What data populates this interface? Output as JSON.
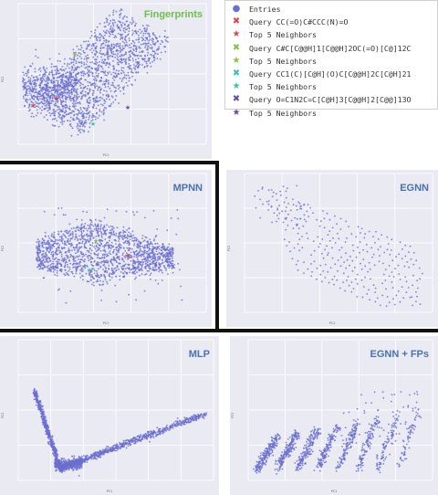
{
  "legend": {
    "items": [
      {
        "label": "Entries",
        "marker": "●",
        "color": "#6b6fcf"
      },
      {
        "label": "Query CC(=O)C#CCC(N)=O",
        "marker": "✖",
        "color": "#d9474c"
      },
      {
        "label": "Top 5 Neighbors",
        "marker": "★",
        "color": "#d9474c"
      },
      {
        "label": "Query C#C[C@@H]1[C@@H]2OC(=O)[C@]12C",
        "marker": "✖",
        "color": "#8bc34a"
      },
      {
        "label": "Top 5 Neighbors",
        "marker": "★",
        "color": "#8bc34a"
      },
      {
        "label": "Query CC1(C)[C@H](O)C[C@@H]2C[C@H]21",
        "marker": "✖",
        "color": "#3fbfb5"
      },
      {
        "label": "Top 5 Neighbors",
        "marker": "★",
        "color": "#3fbfb5"
      },
      {
        "label": "Query O=C1N2C=C[C@H]3[C@@H]2[C@@]13O",
        "marker": "✖",
        "color": "#6a4aa8"
      },
      {
        "label": "Top 5 Neighbors",
        "marker": "★",
        "color": "#6a4aa8"
      }
    ]
  },
  "chart_data": [
    {
      "type": "scatter",
      "title": "Fingerprints",
      "title_color": "#6cc04a",
      "shape": "fan",
      "xlabel": "PC1",
      "ylabel": "PC2"
    },
    {
      "type": "scatter",
      "title": "MPNN",
      "title_color": "#4a72b0",
      "shape": "bowl",
      "xlabel": "PC1",
      "ylabel": "PC2"
    },
    {
      "type": "scatter",
      "title": "EGNN",
      "title_color": "#4a72b0",
      "shape": "lattice",
      "xlabel": "PC1",
      "ylabel": "PC2"
    },
    {
      "type": "scatter",
      "title": "MLP",
      "title_color": "#4a72b0",
      "shape": "vcurve",
      "xlabel": "PC1",
      "ylabel": "PC2"
    },
    {
      "type": "scatter",
      "title": "EGNN + FPs",
      "title_color": "#4a72b0",
      "shape": "bands",
      "xlabel": "PC1",
      "ylabel": "PC2"
    }
  ],
  "colors": {
    "entries": "#6b6fcf",
    "panel_bg": "#eaeaf2",
    "grid": "#ffffff"
  }
}
